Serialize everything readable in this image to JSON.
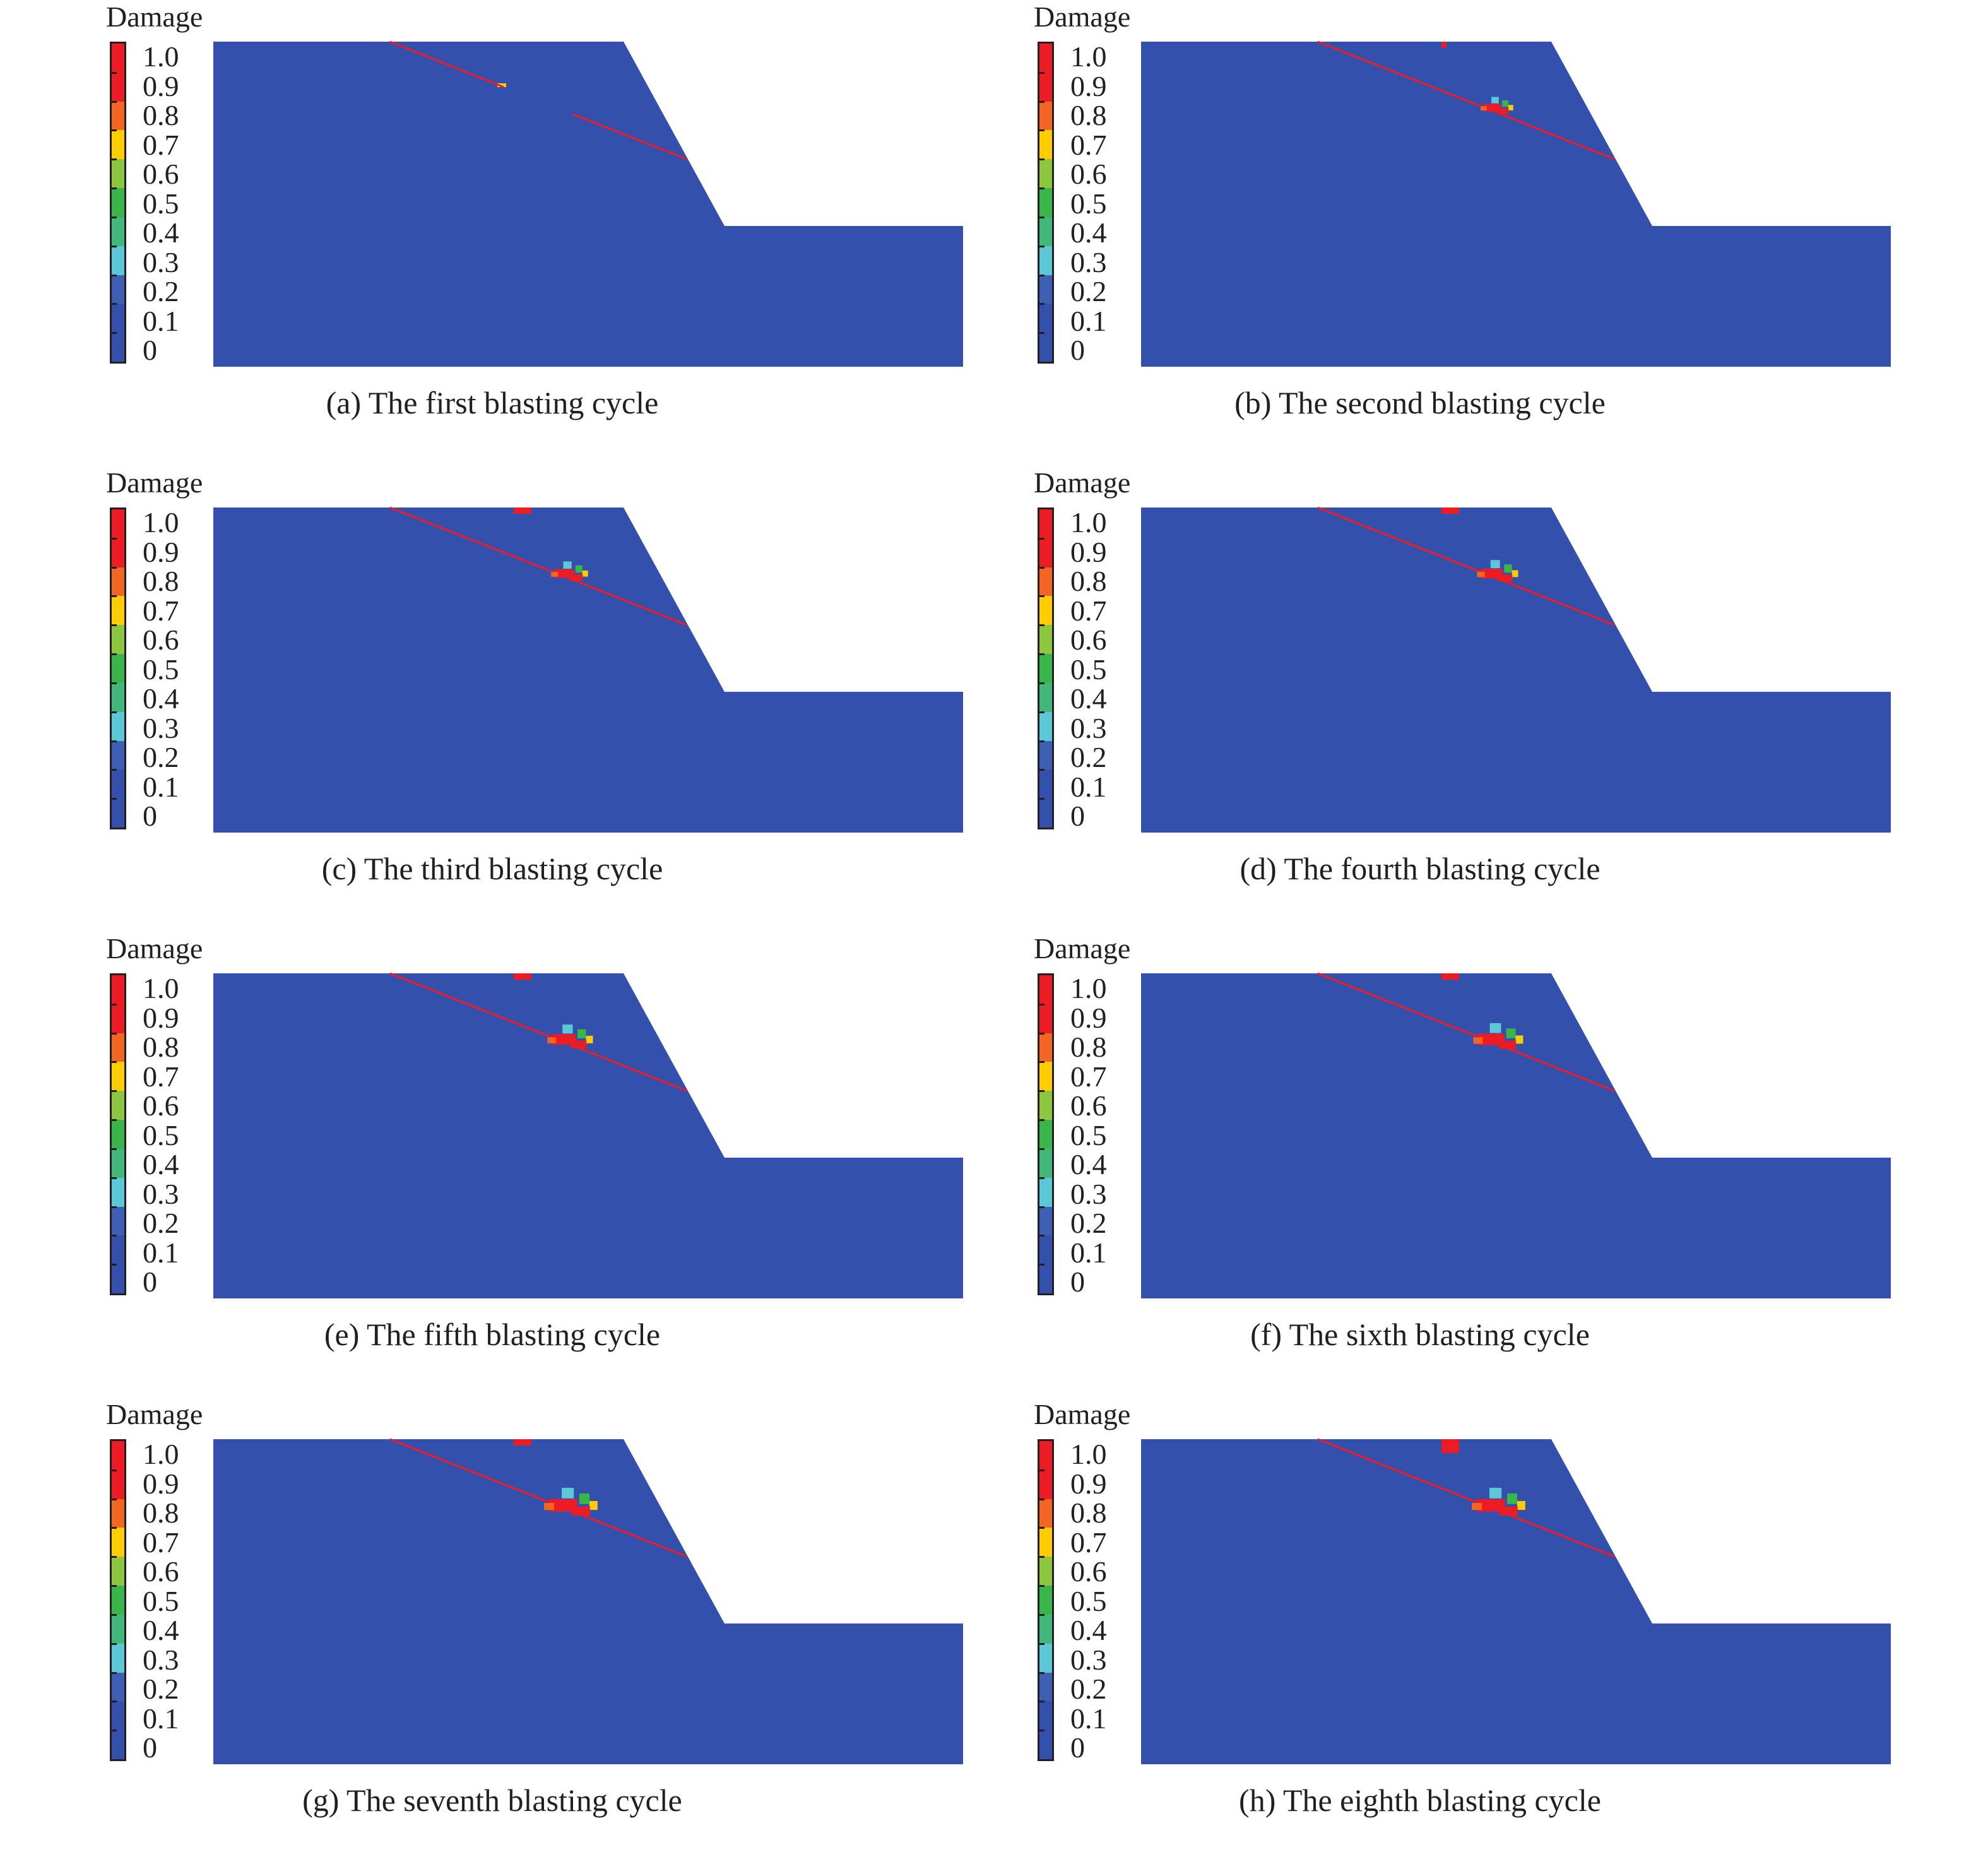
{
  "figure": {
    "legend_title": "Damage",
    "colorbar": {
      "tick_labels": [
        "1.0",
        "0.9",
        "0.8",
        "0.7",
        "0.6",
        "0.5",
        "0.4",
        "0.3",
        "0.2",
        "0.1",
        "0"
      ],
      "colors_top_to_bottom": [
        "#ed1c24",
        "#ed1c24",
        "#f26522",
        "#ffcc00",
        "#8dc63f",
        "#39b54a",
        "#41b87a",
        "#5cc8d7",
        "#3d60b5",
        "#3450ad",
        "#3450ad"
      ]
    },
    "colors": {
      "rock_mass": "#3450ad",
      "joint_line": "#ed1c24",
      "damage_high": "#ed1c24",
      "damage_orange": "#f26522",
      "damage_yellow": "#ffcc00",
      "damage_green": "#39b54a",
      "damage_cyan": "#5cc8d7"
    },
    "panels": [
      {
        "caption": "(a) The first blasting cycle",
        "stage": 1
      },
      {
        "caption": "(b) The second blasting cycle",
        "stage": 2
      },
      {
        "caption": "(c) The third blasting cycle",
        "stage": 3
      },
      {
        "caption": "(d) The fourth blasting cycle",
        "stage": 4
      },
      {
        "caption": "(e) The fifth blasting cycle",
        "stage": 5
      },
      {
        "caption": "(f) The sixth blasting cycle",
        "stage": 6
      },
      {
        "caption": "(g) The seventh blasting cycle",
        "stage": 7
      },
      {
        "caption": "(h) The eighth blasting cycle",
        "stage": 8
      }
    ]
  }
}
